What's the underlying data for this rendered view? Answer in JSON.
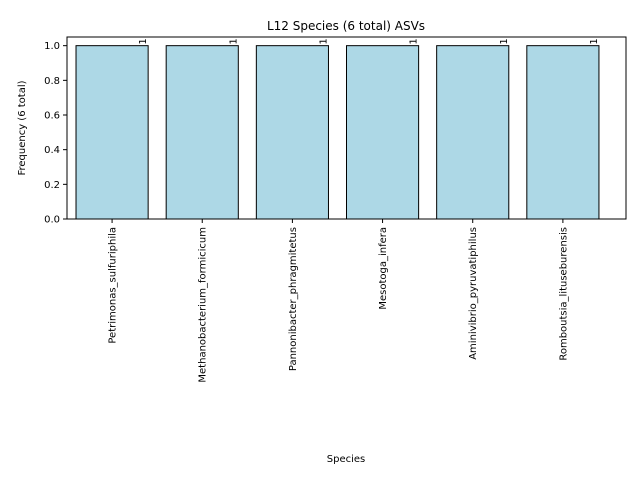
{
  "chart_data": {
    "type": "bar",
    "title": "L12 Species (6 total) ASVs",
    "xlabel": "Species",
    "ylabel": "Frequency (6 total)",
    "categories": [
      "Petrimonas_sulfuriphila",
      "Methanobacterium_formicicum",
      "Pannonibacter_phragmitetus",
      "Mesotoga_infera",
      "Aminivibrio_pyruvatiphilus",
      "Romboutsia_lituseburensis"
    ],
    "values": [
      1,
      1,
      1,
      1,
      1,
      1
    ],
    "data_labels": [
      "1",
      "1",
      "1",
      "1",
      "1",
      "1"
    ],
    "ylim": [
      0,
      1.05
    ],
    "yticks": [
      "0.0",
      "0.2",
      "0.4",
      "0.6",
      "0.8",
      "1.0"
    ],
    "bar_color": "#add8e6",
    "edge_color": "#000000",
    "grid": false,
    "legend": "none"
  }
}
